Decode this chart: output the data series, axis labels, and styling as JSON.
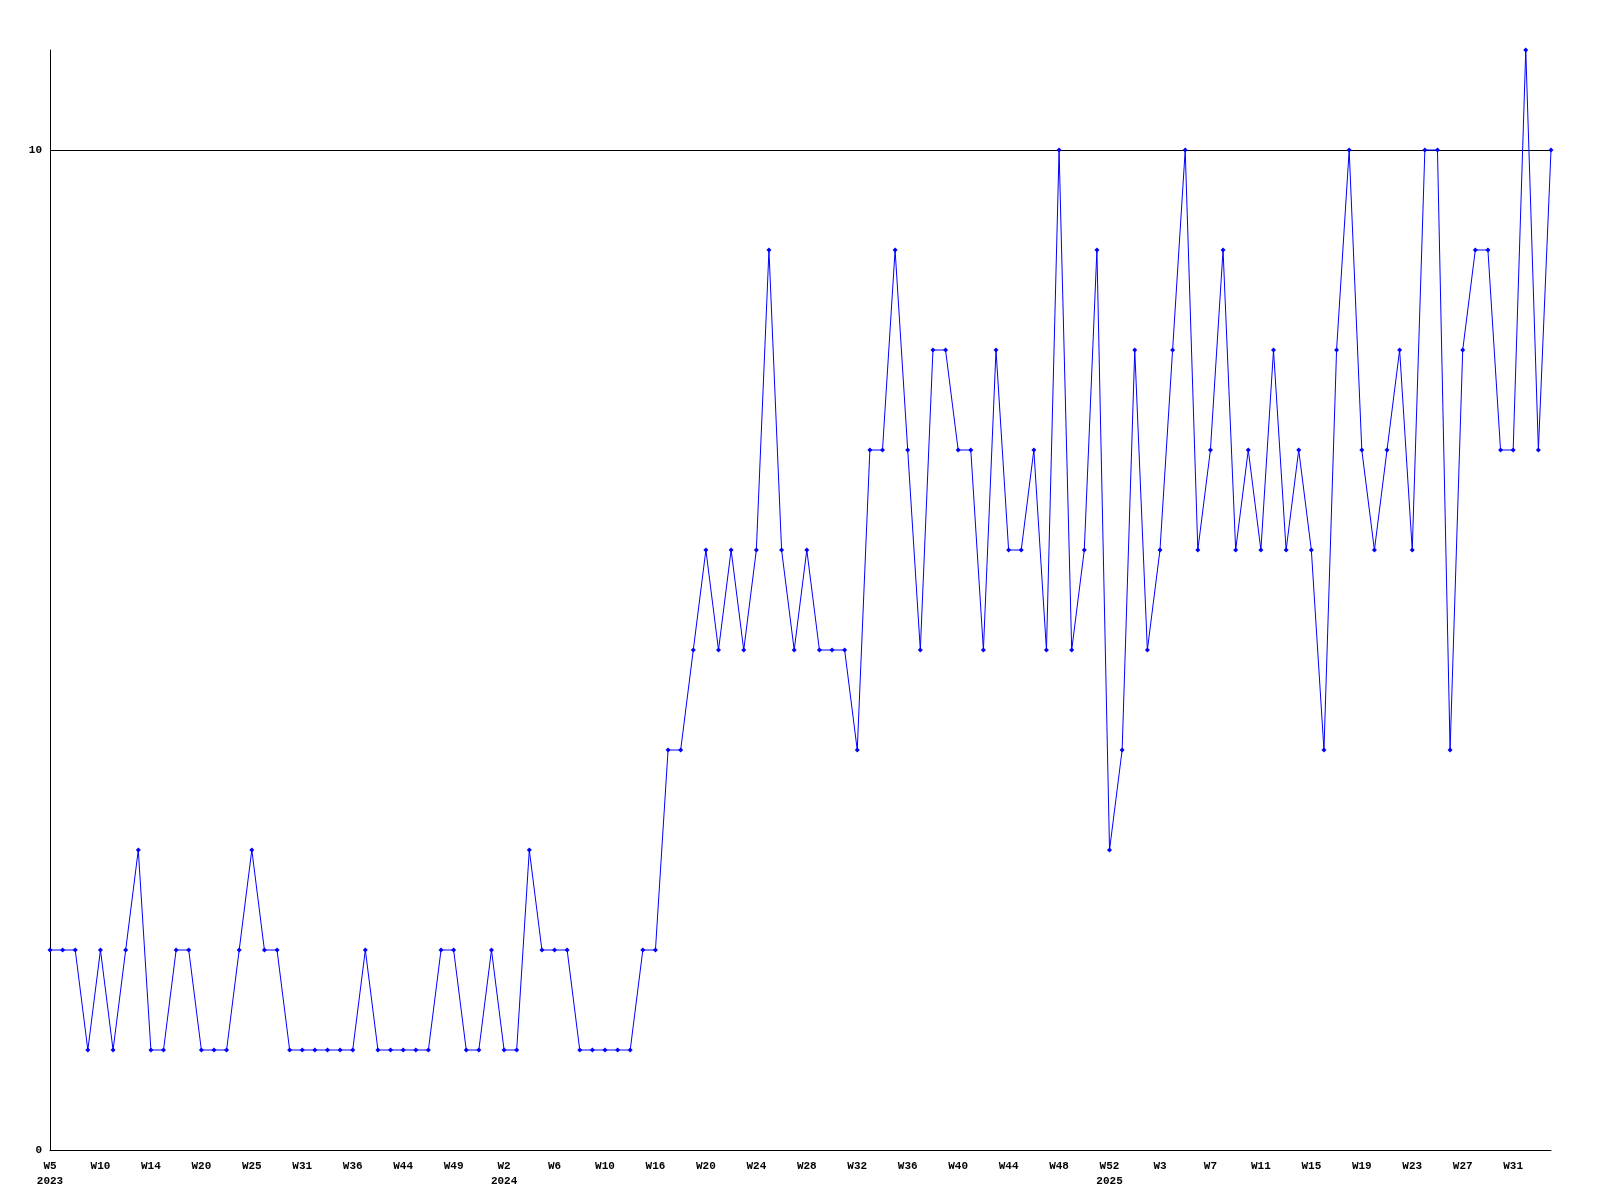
{
  "chart_data": {
    "type": "line",
    "categories": [
      "W5\n2023",
      null,
      null,
      null,
      "W10",
      null,
      null,
      null,
      "W14",
      null,
      null,
      null,
      "W20",
      null,
      null,
      null,
      "W25",
      null,
      null,
      null,
      "W31",
      null,
      null,
      null,
      "W36",
      null,
      null,
      null,
      "W44",
      null,
      null,
      null,
      "W49",
      null,
      null,
      null,
      "W2\n2024",
      null,
      null,
      null,
      "W6",
      null,
      null,
      null,
      "W10",
      null,
      null,
      null,
      "W16",
      null,
      null,
      null,
      "W20",
      null,
      null,
      null,
      "W24",
      null,
      null,
      null,
      "W28",
      null,
      null,
      null,
      "W32",
      null,
      null,
      null,
      "W36",
      null,
      null,
      null,
      "W40",
      null,
      null,
      null,
      "W44",
      null,
      null,
      null,
      "W48",
      null,
      null,
      null,
      "W52\n2025",
      null,
      null,
      null,
      "W3",
      null,
      null,
      null,
      "W7",
      null,
      null,
      null,
      "W11",
      null,
      null,
      null,
      "W15",
      null,
      null,
      null,
      "W19",
      null,
      null,
      null,
      "W23",
      null,
      null,
      null,
      "W27",
      null,
      null,
      null,
      "W31",
      null,
      null,
      null
    ],
    "series": [
      {
        "color": "#0000ff",
        "values": [
          2,
          2,
          2,
          1,
          2,
          1,
          2,
          3,
          1,
          1,
          2,
          2,
          1,
          1,
          1,
          2,
          3,
          2,
          2,
          1,
          1,
          1,
          1,
          1,
          1,
          2,
          1,
          1,
          1,
          1,
          1,
          2,
          2,
          1,
          1,
          2,
          1,
          1,
          3,
          2,
          2,
          2,
          1,
          1,
          1,
          1,
          1,
          2,
          2,
          4,
          4,
          5,
          6,
          5,
          6,
          5,
          6,
          9,
          6,
          5,
          6,
          5,
          5,
          5,
          4,
          7,
          7,
          9,
          7,
          5,
          8,
          8,
          7,
          7,
          5,
          8,
          6,
          6,
          7,
          5,
          10,
          5,
          6,
          9,
          3,
          4,
          8,
          5,
          6,
          8,
          10,
          6,
          7,
          9,
          6,
          7,
          6,
          8,
          6,
          7,
          6,
          4,
          8,
          10,
          7,
          6,
          7,
          8,
          6,
          10,
          10,
          4,
          8,
          9,
          9,
          7,
          7,
          11,
          7,
          10
        ]
      }
    ],
    "ylim": [
      0,
      11
    ],
    "yticks": [
      0,
      10
    ],
    "grid": "y",
    "marker": "diamond",
    "line_style": "solid"
  }
}
